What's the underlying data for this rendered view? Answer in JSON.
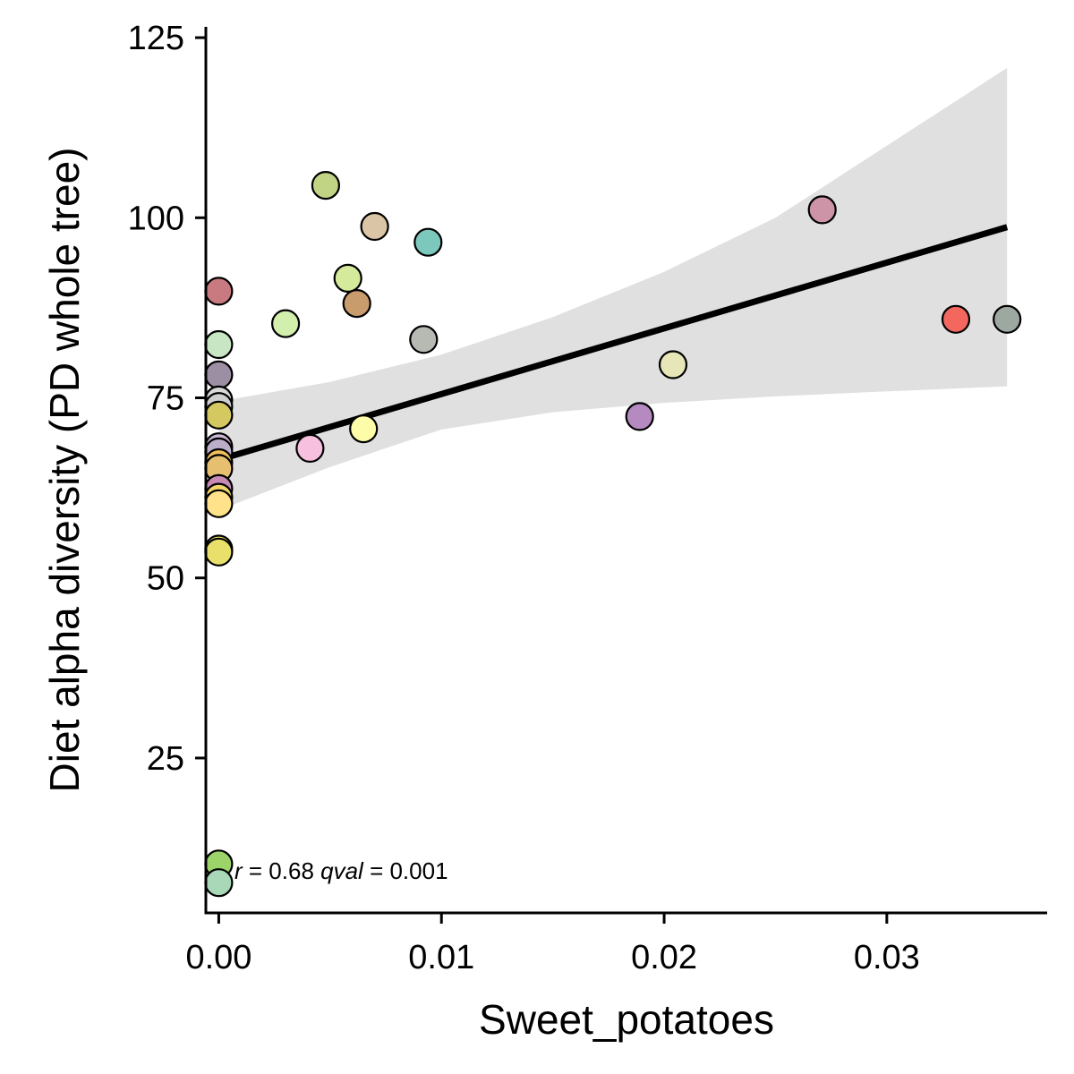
{
  "chart_data": {
    "type": "scatter",
    "title": "",
    "xlabel": "Sweet_potatoes",
    "ylabel": "Diet alpha diversity (PD whole tree)",
    "xlim": [
      -0.00058,
      0.0372
    ],
    "ylim": [
      3.5,
      126.5
    ],
    "x_ticks": [
      0.0,
      0.01,
      0.02,
      0.03
    ],
    "x_tick_labels": [
      "0.00",
      "0.01",
      "0.02",
      "0.03"
    ],
    "y_ticks": [
      25,
      50,
      75,
      100,
      125
    ],
    "y_tick_labels": [
      "25",
      "50",
      "75",
      "100",
      "125"
    ],
    "grid": false,
    "legend": "none",
    "annotation": {
      "r_symbol": "r",
      "r_text": " = 0.68 ",
      "q_symbol": "qval",
      "q_text": " = 0.001"
    },
    "fit_line": {
      "x": [
        0.0,
        0.0354
      ],
      "y": [
        66.4,
        98.7
      ],
      "color": "#000000"
    },
    "confidence_band": {
      "x": [
        0.0,
        0.005,
        0.01,
        0.015,
        0.02,
        0.025,
        0.03,
        0.0354
      ],
      "upper": [
        74.5,
        77.2,
        81.0,
        86.2,
        92.5,
        100.0,
        110.0,
        120.8
      ],
      "lower": [
        59.4,
        65.4,
        70.6,
        73.0,
        74.3,
        75.2,
        75.9,
        76.6
      ],
      "color": "#e0e0e0"
    },
    "points": [
      {
        "x": 0.0,
        "y": 89.8,
        "color": "#c97a80"
      },
      {
        "x": 0.0,
        "y": 82.4,
        "color": "#c8e6c3"
      },
      {
        "x": 0.0,
        "y": 78.2,
        "color": "#9c8fa3"
      },
      {
        "x": 0.0,
        "y": 74.7,
        "color": "#d8d8d8"
      },
      {
        "x": 0.0,
        "y": 73.8,
        "color": "#cfcfcf"
      },
      {
        "x": 0.0,
        "y": 72.6,
        "color": "#d4c860"
      },
      {
        "x": 0.0,
        "y": 68.2,
        "color": "#c9b8d6"
      },
      {
        "x": 0.0,
        "y": 67.5,
        "color": "#bcaec8"
      },
      {
        "x": 0.0,
        "y": 66.0,
        "color": "#f0c05a"
      },
      {
        "x": 0.0,
        "y": 65.2,
        "color": "#e6c070"
      },
      {
        "x": 0.0,
        "y": 62.4,
        "color": "#c78ab5"
      },
      {
        "x": 0.0,
        "y": 61.2,
        "color": "#f2d66a"
      },
      {
        "x": 0.0,
        "y": 60.3,
        "color": "#ffe28a"
      },
      {
        "x": 0.0,
        "y": 54.0,
        "color": "#efe66e"
      },
      {
        "x": 0.0,
        "y": 53.6,
        "color": "#e8e06a"
      },
      {
        "x": 0.0,
        "y": 10.3,
        "color": "#9dd46a"
      },
      {
        "x": 0.0,
        "y": 7.7,
        "color": "#a8d8b8"
      },
      {
        "x": 0.003,
        "y": 85.3,
        "color": "#d3efae"
      },
      {
        "x": 0.0041,
        "y": 68.0,
        "color": "#f7c0de"
      },
      {
        "x": 0.0048,
        "y": 104.5,
        "color": "#c1d486"
      },
      {
        "x": 0.0058,
        "y": 91.6,
        "color": "#d6ea9c"
      },
      {
        "x": 0.0062,
        "y": 88.1,
        "color": "#c99c6e"
      },
      {
        "x": 0.0065,
        "y": 70.7,
        "color": "#fdfca8"
      },
      {
        "x": 0.007,
        "y": 98.8,
        "color": "#dac6a6"
      },
      {
        "x": 0.0092,
        "y": 83.1,
        "color": "#b6bab2"
      },
      {
        "x": 0.0094,
        "y": 96.6,
        "color": "#7dc8bc"
      },
      {
        "x": 0.0189,
        "y": 72.4,
        "color": "#b58ac0"
      },
      {
        "x": 0.0204,
        "y": 79.6,
        "color": "#e6e6b8"
      },
      {
        "x": 0.0271,
        "y": 101.1,
        "color": "#cc94a6"
      },
      {
        "x": 0.0331,
        "y": 85.9,
        "color": "#f4675e"
      },
      {
        "x": 0.0354,
        "y": 85.9,
        "color": "#9ca8a0"
      }
    ]
  }
}
